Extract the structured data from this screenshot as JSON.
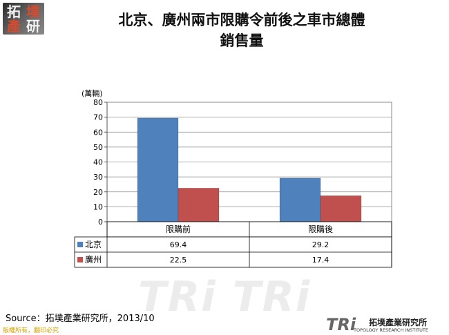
{
  "logo": {
    "chars": [
      "拓",
      "墣",
      "產",
      "研"
    ]
  },
  "title_line1": "北京、廣州兩市限購令前後之車市總體",
  "title_line2": "銷售量",
  "colors": {
    "beijing": "#4F81BD",
    "guangzhou": "#C0504D",
    "logo_red": "#d64a2e",
    "logo_light": "#f2f2f2",
    "copyright": "#d4a000"
  },
  "watermark": {
    "text": "TRi TRi"
  },
  "chart_data": {
    "type": "bar",
    "unit_label": "(萬輛)",
    "categories": [
      "限購前",
      "限購後"
    ],
    "series": [
      {
        "name": "北京",
        "values": [
          69.4,
          29.2
        ],
        "color": "#4F81BD"
      },
      {
        "name": "廣州",
        "values": [
          22.5,
          17.4
        ],
        "color": "#C0504D"
      }
    ],
    "y_ticks": [
      "0",
      "10",
      "20",
      "30",
      "40",
      "50",
      "60",
      "70",
      "80"
    ],
    "ylim": [
      0,
      80
    ],
    "grid": true,
    "data_table": true,
    "table_values": [
      [
        "69.4",
        "29.2"
      ],
      [
        "22.5",
        "17.4"
      ]
    ]
  },
  "source": "Source：拓墣產業研究所，2013/10",
  "copyright": "版權所有，翻印必究",
  "brand": {
    "tri": "TRi",
    "cn": "拓墣產業研究所",
    "en": "TOPOLOGY RESEARCH INSTITUTE"
  }
}
